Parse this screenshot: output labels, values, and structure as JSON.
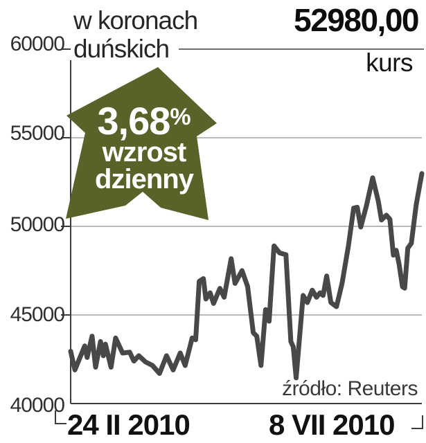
{
  "header": {
    "unit_line1": "w koronach",
    "unit_line2": "duńskich",
    "price": "52980,00",
    "price_caption": "kurs"
  },
  "badge": {
    "percent_value": "3,68",
    "percent_sign": "%",
    "caption_line1": "wzrost",
    "caption_line2": "dzienny",
    "arrow_color": "#5a6129"
  },
  "source_note": "źródło: Reuters",
  "chart_data": {
    "type": "line",
    "title": "w koronach duńskich",
    "ylim": [
      40000,
      60000
    ],
    "yticks": [
      60000,
      55000,
      50000,
      45000,
      40000
    ],
    "ytick_labels": [
      "60000",
      "55000",
      "50000",
      "45000",
      "40000"
    ],
    "x_axis": {
      "start_label": "24 II 2010",
      "end_label": "8 VII 2010"
    },
    "grid": true,
    "legend": "none",
    "line_color": "#48484b",
    "last_value": 52980,
    "daily_change_percent": "3,68",
    "points": [
      [
        0.0,
        42950
      ],
      [
        0.012,
        41900
      ],
      [
        0.04,
        43250
      ],
      [
        0.047,
        42600
      ],
      [
        0.061,
        43800
      ],
      [
        0.071,
        42050
      ],
      [
        0.085,
        43500
      ],
      [
        0.093,
        42700
      ],
      [
        0.099,
        43350
      ],
      [
        0.115,
        42050
      ],
      [
        0.128,
        43700
      ],
      [
        0.148,
        42850
      ],
      [
        0.168,
        42900
      ],
      [
        0.18,
        42400
      ],
      [
        0.194,
        42700
      ],
      [
        0.213,
        42350
      ],
      [
        0.233,
        42150
      ],
      [
        0.253,
        41700
      ],
      [
        0.273,
        42700
      ],
      [
        0.292,
        41900
      ],
      [
        0.312,
        42850
      ],
      [
        0.326,
        42150
      ],
      [
        0.346,
        43700
      ],
      [
        0.356,
        43600
      ],
      [
        0.366,
        46900
      ],
      [
        0.378,
        47050
      ],
      [
        0.385,
        45900
      ],
      [
        0.397,
        46250
      ],
      [
        0.407,
        45650
      ],
      [
        0.425,
        46500
      ],
      [
        0.437,
        46000
      ],
      [
        0.457,
        48170
      ],
      [
        0.468,
        46780
      ],
      [
        0.488,
        47500
      ],
      [
        0.504,
        46600
      ],
      [
        0.52,
        44000
      ],
      [
        0.53,
        43800
      ],
      [
        0.542,
        42150
      ],
      [
        0.555,
        45300
      ],
      [
        0.565,
        44650
      ],
      [
        0.579,
        48900
      ],
      [
        0.595,
        48500
      ],
      [
        0.613,
        48400
      ],
      [
        0.627,
        43500
      ],
      [
        0.634,
        43200
      ],
      [
        0.642,
        41450
      ],
      [
        0.662,
        46100
      ],
      [
        0.674,
        45700
      ],
      [
        0.688,
        46400
      ],
      [
        0.7,
        46000
      ],
      [
        0.71,
        46250
      ],
      [
        0.719,
        46100
      ],
      [
        0.729,
        47200
      ],
      [
        0.741,
        45700
      ],
      [
        0.757,
        45470
      ],
      [
        0.773,
        46800
      ],
      [
        0.791,
        48900
      ],
      [
        0.806,
        51030
      ],
      [
        0.816,
        51080
      ],
      [
        0.826,
        49960
      ],
      [
        0.842,
        51150
      ],
      [
        0.86,
        52740
      ],
      [
        0.876,
        51430
      ],
      [
        0.885,
        50360
      ],
      [
        0.899,
        50630
      ],
      [
        0.909,
        50400
      ],
      [
        0.919,
        48370
      ],
      [
        0.927,
        48650
      ],
      [
        0.935,
        47900
      ],
      [
        0.945,
        46590
      ],
      [
        0.951,
        46510
      ],
      [
        0.96,
        48770
      ],
      [
        0.97,
        49040
      ],
      [
        0.984,
        51230
      ],
      [
        1.0,
        52980
      ]
    ]
  }
}
